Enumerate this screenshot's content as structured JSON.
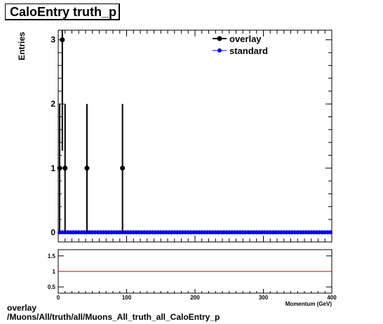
{
  "title": "CaloEntry truth_p",
  "footer": {
    "line1": "overlay",
    "line2": "/Muons/All/truth/all/Muons_All_truth_all_CaloEntry_p"
  },
  "chart_data": [
    {
      "type": "scatter",
      "title": "CaloEntry truth_p",
      "xlabel": "Momentum (GeV)",
      "ylabel": "Entries",
      "xlim": [
        0,
        400
      ],
      "ylim": [
        -0.15,
        3.15
      ],
      "xticks": [
        "0",
        "100",
        "200",
        "300",
        "400"
      ],
      "yticks": [
        "0",
        "1",
        "2",
        "3"
      ],
      "legend_position": "top-right",
      "series": [
        {
          "name": "overlay",
          "color": "#000000",
          "points": [
            {
              "x": 2,
              "y": 1,
              "err": 1
            },
            {
              "x": 6,
              "y": 3,
              "err": 1.73
            },
            {
              "x": 10,
              "y": 1,
              "err": 1
            },
            {
              "x": 42,
              "y": 1,
              "err": 1
            },
            {
              "x": 94,
              "y": 1,
              "err": 1
            }
          ]
        },
        {
          "name": "standard",
          "color": "#0000ff",
          "points_y": 0,
          "x_step": 4,
          "x_start": 2,
          "x_end": 398
        }
      ]
    },
    {
      "type": "line",
      "xlim": [
        0,
        400
      ],
      "ylim": [
        0.3,
        1.7
      ],
      "xticks": [
        "0",
        "100",
        "200",
        "300",
        "400"
      ],
      "yticks": [
        "0.5",
        "1",
        "1.5"
      ],
      "reference_line": {
        "y": 1,
        "color": "#cc0000"
      }
    }
  ]
}
